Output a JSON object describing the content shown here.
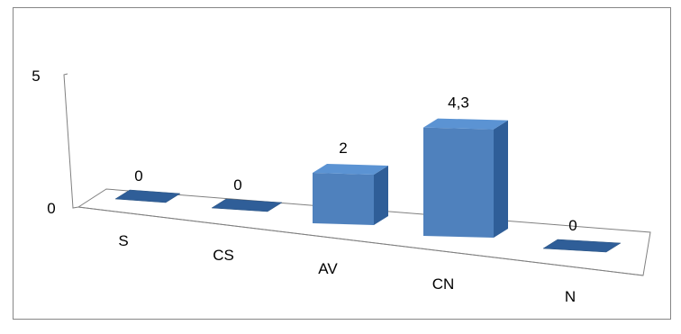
{
  "chart_data": {
    "type": "bar",
    "categories": [
      "S",
      "CS",
      "AV",
      "CN",
      "N"
    ],
    "values": [
      0,
      0,
      2,
      4.3,
      0
    ],
    "data_labels": [
      "0",
      "0",
      "2",
      "4,3",
      "0"
    ],
    "yticks": [
      "0",
      "5"
    ],
    "ylim": [
      0,
      5
    ],
    "title": "",
    "xlabel": "",
    "ylabel": "",
    "grid": false,
    "legend": "none",
    "bar_color": "#4F81BD",
    "bar_top_color": "#5B93D3",
    "bar_side_color": "#2F5E98",
    "frame_color": "#808080"
  }
}
